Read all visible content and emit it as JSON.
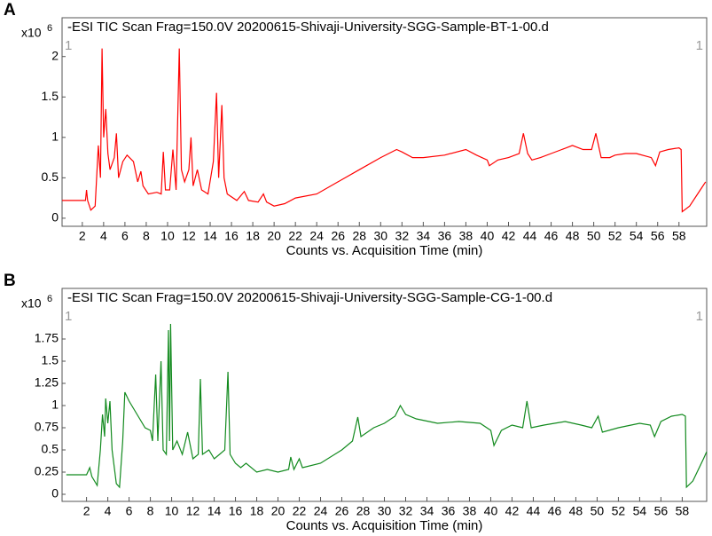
{
  "chart_data": [
    {
      "type": "line",
      "panel": "A",
      "title": "-ESI TIC Scan Frag=150.0V 20200615-Shivaji-University-SGG-Sample-BT-1-00.d",
      "ylabel_base": "x10",
      "ylabel_exponent": "6",
      "annotations": [
        "1",
        "1"
      ],
      "xlabel": "Counts vs. Acquisition Time (min)",
      "xlim": [
        0.1,
        60.6
      ],
      "ylim": [
        -0.1,
        2.48
      ],
      "xticks": [
        2,
        4,
        6,
        8,
        10,
        12,
        14,
        16,
        18,
        20,
        22,
        24,
        26,
        28,
        30,
        32,
        34,
        36,
        38,
        40,
        42,
        44,
        46,
        48,
        50,
        52,
        54,
        56,
        58
      ],
      "yticks": [
        0,
        0.5,
        1,
        1.5,
        2
      ],
      "x": [
        0.1,
        2.3,
        2.4,
        2.5,
        2.8,
        3.2,
        3.5,
        3.7,
        3.85,
        4.0,
        4.2,
        4.4,
        4.6,
        5.0,
        5.2,
        5.4,
        5.8,
        6.2,
        6.8,
        7.2,
        7.5,
        7.7,
        8.2,
        9.0,
        9.4,
        9.6,
        9.8,
        10.2,
        10.5,
        10.8,
        11.1,
        11.3,
        11.6,
        12.0,
        12.2,
        12.4,
        12.8,
        13.2,
        13.8,
        14.3,
        14.6,
        14.8,
        15.1,
        15.3,
        15.6,
        16.5,
        17.2,
        17.6,
        18.5,
        19,
        19.3,
        20,
        21,
        22,
        24,
        26,
        28,
        30,
        31.5,
        32,
        33,
        34,
        36,
        38,
        39,
        40,
        40.2,
        41,
        42,
        43,
        43.4,
        43.8,
        44.2,
        45,
        46,
        47,
        48,
        49,
        49.8,
        50.2,
        50.7,
        51.5,
        52,
        53,
        54,
        55.4,
        55.8,
        56.2,
        57,
        58,
        58.2,
        58.3,
        59,
        60,
        60.5
      ],
      "series": [
        {
          "name": "BT",
          "color": "#ff0000",
          "values": [
            0.22,
            0.22,
            0.35,
            0.22,
            0.1,
            0.15,
            0.9,
            0.5,
            2.1,
            1.0,
            1.35,
            0.8,
            0.6,
            0.75,
            1.05,
            0.5,
            0.7,
            0.78,
            0.7,
            0.45,
            0.58,
            0.4,
            0.3,
            0.32,
            0.3,
            0.82,
            0.35,
            0.35,
            0.85,
            0.35,
            2.1,
            0.6,
            0.45,
            0.6,
            1.0,
            0.4,
            0.6,
            0.35,
            0.3,
            0.7,
            1.55,
            0.5,
            1.4,
            0.5,
            0.3,
            0.22,
            0.33,
            0.22,
            0.2,
            0.3,
            0.2,
            0.15,
            0.18,
            0.25,
            0.3,
            0.45,
            0.6,
            0.75,
            0.85,
            0.82,
            0.75,
            0.75,
            0.78,
            0.85,
            0.78,
            0.72,
            0.65,
            0.72,
            0.75,
            0.8,
            1.05,
            0.8,
            0.72,
            0.75,
            0.8,
            0.85,
            0.9,
            0.85,
            0.85,
            1.05,
            0.75,
            0.75,
            0.78,
            0.8,
            0.8,
            0.75,
            0.65,
            0.82,
            0.85,
            0.87,
            0.85,
            0.08,
            0.15,
            0.35,
            0.45
          ]
        }
      ]
    },
    {
      "type": "line",
      "panel": "B",
      "title": "-ESI TIC Scan Frag=150.0V 20200615-Shivaji-University-SGG-Sample-CG-1-00.d",
      "ylabel_base": "x10",
      "ylabel_exponent": "6",
      "annotations": [
        "1",
        "1"
      ],
      "xlabel": "Counts vs. Acquisition Time (min)",
      "xlim": [
        -0.3,
        60.3
      ],
      "ylim": [
        -0.08,
        2.32
      ],
      "xticks": [
        2,
        4,
        6,
        8,
        10,
        12,
        14,
        16,
        18,
        20,
        22,
        24,
        26,
        28,
        30,
        32,
        34,
        36,
        38,
        40,
        42,
        44,
        46,
        48,
        50,
        52,
        54,
        56,
        58
      ],
      "yticks": [
        0,
        0.25,
        0.5,
        0.75,
        1,
        1.25,
        1.5,
        1.75
      ],
      "x": [
        0.1,
        2,
        2.3,
        2.5,
        3,
        3.3,
        3.5,
        3.7,
        3.8,
        4,
        4.2,
        4.4,
        4.8,
        5.1,
        5.4,
        5.6,
        6,
        6.5,
        7,
        7.5,
        8,
        8.2,
        8.5,
        8.7,
        9,
        9.2,
        9.5,
        9.7,
        9.8,
        9.9,
        10.1,
        10.5,
        11,
        11.5,
        12,
        12.5,
        12.7,
        12.9,
        13.5,
        14,
        14.5,
        15,
        15.3,
        15.5,
        16,
        16.5,
        17,
        18,
        19,
        20,
        21,
        21.2,
        21.5,
        22,
        22.3,
        24,
        26,
        27,
        27.5,
        27.8,
        29,
        30,
        31,
        31.5,
        32,
        33,
        35,
        37,
        39,
        40,
        40.3,
        41,
        42,
        43,
        43.4,
        43.8,
        45,
        46,
        47,
        48.5,
        49.5,
        50.1,
        50.5,
        52,
        54,
        55,
        55.4,
        56,
        57,
        58,
        58.3,
        58.4,
        59,
        60,
        60.3
      ],
      "series": [
        {
          "name": "CG",
          "color": "#128a1e",
          "values": [
            0.22,
            0.22,
            0.3,
            0.2,
            0.1,
            0.5,
            0.9,
            0.65,
            1.08,
            0.8,
            1.05,
            0.5,
            0.12,
            0.08,
            0.6,
            1.15,
            1.05,
            0.95,
            0.85,
            0.75,
            0.72,
            0.6,
            1.35,
            0.6,
            1.5,
            0.5,
            0.45,
            1.85,
            0.6,
            1.92,
            0.5,
            0.6,
            0.45,
            0.7,
            0.4,
            0.45,
            1.3,
            0.45,
            0.5,
            0.4,
            0.45,
            0.5,
            1.38,
            0.45,
            0.35,
            0.3,
            0.35,
            0.25,
            0.28,
            0.25,
            0.28,
            0.42,
            0.28,
            0.4,
            0.3,
            0.35,
            0.5,
            0.6,
            0.87,
            0.65,
            0.75,
            0.8,
            0.88,
            1.0,
            0.9,
            0.85,
            0.8,
            0.82,
            0.8,
            0.72,
            0.55,
            0.72,
            0.78,
            0.75,
            1.05,
            0.75,
            0.78,
            0.8,
            0.82,
            0.78,
            0.75,
            0.88,
            0.7,
            0.75,
            0.8,
            0.78,
            0.65,
            0.82,
            0.88,
            0.9,
            0.88,
            0.08,
            0.15,
            0.4,
            0.48
          ]
        }
      ]
    }
  ]
}
